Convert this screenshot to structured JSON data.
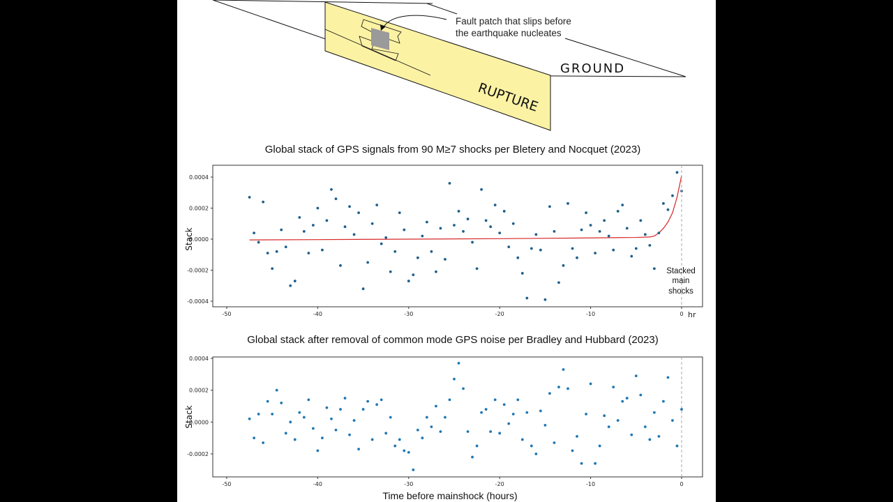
{
  "diagram": {
    "callout": [
      "Fault patch that slips before",
      "the earthquake nucleates"
    ],
    "ground_label": "GROUND",
    "rupture_label": "RUPTURE",
    "plane_color": "#fcf2a4",
    "patch_color": "#9a9a9a"
  },
  "chart_data": [
    {
      "type": "scatter",
      "title": "Global stack of GPS signals from 90 M≥7 shocks per Bletery and Nocquet (2023)",
      "xlabel": "hr",
      "ylabel": "Stack",
      "xlim": [
        -50,
        2.3
      ],
      "ylim": [
        -0.00042,
        0.00047
      ],
      "xticks": [
        "-50",
        "-40",
        "-30",
        "-20",
        "-10",
        "0"
      ],
      "xtick_values": [
        -50,
        -40,
        -30,
        -20,
        -10,
        0
      ],
      "yticks": [
        "0.0004",
        "0.0002",
        "0.0000",
        "-0.0002",
        "-0.0004"
      ],
      "ytick_values": [
        0.0004,
        0.0002,
        0,
        -0.0002,
        -0.0004
      ],
      "grid": false,
      "point_color": "#1f5f8b",
      "fit_color": "#d62728",
      "annotation": [
        "Stacked",
        "main",
        "shocks"
      ],
      "x": [
        -47.5,
        -47,
        -46.5,
        -46,
        -45.5,
        -45,
        -44.5,
        -44,
        -43.5,
        -43,
        -42.5,
        -42,
        -41.5,
        -41,
        -40.5,
        -40,
        -39.5,
        -39,
        -38.5,
        -38,
        -37.5,
        -37,
        -36.5,
        -36,
        -35.5,
        -35,
        -34.5,
        -34,
        -33.5,
        -33,
        -32.5,
        -32,
        -31.5,
        -31,
        -30.5,
        -30,
        -29.5,
        -29,
        -28.5,
        -28,
        -27.5,
        -27,
        -26.5,
        -26,
        -25.5,
        -25,
        -24.5,
        -24,
        -23.5,
        -23,
        -22.5,
        -22,
        -21.5,
        -21,
        -20.5,
        -20,
        -19.5,
        -19,
        -18.5,
        -18,
        -17.5,
        -17,
        -16.5,
        -16,
        -15.5,
        -15,
        -14.5,
        -14,
        -13.5,
        -13,
        -12.5,
        -12,
        -11.5,
        -11,
        -10.5,
        -10,
        -9.5,
        -9,
        -8.5,
        -8,
        -7.5,
        -7,
        -6.5,
        -6,
        -5.5,
        -5,
        -4.5,
        -4,
        -3.5,
        -3,
        -2.5,
        -2,
        -1.5,
        -1,
        -0.5,
        0
      ],
      "y": [
        0.00027,
        4e-05,
        -2e-05,
        0.00024,
        -9e-05,
        -0.00019,
        -8e-05,
        6e-05,
        -5e-05,
        -0.0003,
        -0.00027,
        0.00014,
        5e-05,
        -9e-05,
        9e-05,
        0.0002,
        -7e-05,
        0.00012,
        0.00032,
        0.00026,
        -0.00017,
        8e-05,
        0.00021,
        3e-05,
        0.00017,
        -0.00032,
        -0.00015,
        0.0001,
        0.00022,
        -3e-05,
        1e-05,
        -0.00021,
        -8e-05,
        0.00017,
        6e-05,
        -0.00027,
        -0.00023,
        -0.00012,
        2e-05,
        0.00011,
        -8e-05,
        -0.00021,
        7e-05,
        -0.00013,
        0.00036,
        9e-05,
        0.00018,
        5e-05,
        0.00013,
        -2e-05,
        -0.00019,
        0.00032,
        0.00012,
        8e-05,
        0.00022,
        4e-05,
        0.00018,
        -5e-05,
        0.0001,
        -0.00012,
        -0.00022,
        -0.00038,
        -6e-05,
        3e-05,
        -7e-05,
        -0.00039,
        0.00021,
        5e-05,
        -0.00028,
        -0.00017,
        0.00023,
        -6e-05,
        -0.00012,
        6e-05,
        0.00017,
        9e-05,
        -9e-05,
        5e-05,
        0.00012,
        2e-05,
        -7e-05,
        0.00018,
        0.00022,
        7e-05,
        -0.00011,
        -6e-05,
        0.00012,
        3e-05,
        -4e-05,
        -0.00019,
        4e-05,
        0.00023,
        0.00019,
        0.00028,
        0.00043,
        0.00031
      ],
      "fit": {
        "x": [
          -47.5,
          -40,
          -30,
          -20,
          -10,
          -5,
          -3.5,
          -3,
          -2.5,
          -2,
          -1.5,
          -1,
          -0.5,
          0
        ],
        "y": [
          -5e-06,
          -3e-06,
          0,
          3e-06,
          8e-06,
          1.1e-05,
          1.4e-05,
          2e-05,
          4e-05,
          7e-05,
          0.00011,
          0.00017,
          0.00027,
          0.00041
        ]
      }
    },
    {
      "type": "scatter",
      "title": "Global stack after removal of common mode GPS noise per Bradley and Hubbard (2023)",
      "xlabel": "Time before mainshock (hours)",
      "ylabel": "Stack",
      "xlim": [
        -50,
        2.3
      ],
      "ylim": [
        -0.00032,
        0.0004
      ],
      "xticks": [
        "-50",
        "-40",
        "-30",
        "-20",
        "-10",
        "0"
      ],
      "xtick_values": [
        -50,
        -40,
        -30,
        -20,
        -10,
        0
      ],
      "yticks": [
        "0.0004",
        "0.0002",
        "0.0000",
        "-0.0002"
      ],
      "ytick_values": [
        0.0004,
        0.0002,
        0,
        -0.0002
      ],
      "grid": false,
      "point_color": "#1f77b4",
      "x": [
        -47.5,
        -47,
        -46.5,
        -46,
        -45.5,
        -45,
        -44.5,
        -44,
        -43.5,
        -43,
        -42.5,
        -42,
        -41.5,
        -41,
        -40.5,
        -40,
        -39.5,
        -39,
        -38.5,
        -38,
        -37.5,
        -37,
        -36.5,
        -36,
        -35.5,
        -35,
        -34.5,
        -34,
        -33.5,
        -33,
        -32.5,
        -32,
        -31.5,
        -31,
        -30.5,
        -30,
        -29.5,
        -29,
        -28.5,
        -28,
        -27.5,
        -27,
        -26.5,
        -26,
        -25.5,
        -25,
        -24.5,
        -24,
        -23.5,
        -23,
        -22.5,
        -22,
        -21.5,
        -21,
        -20.5,
        -20,
        -19.5,
        -19,
        -18.5,
        -18,
        -17.5,
        -17,
        -16.5,
        -16,
        -15.5,
        -15,
        -14.5,
        -14,
        -13.5,
        -13,
        -12.5,
        -12,
        -11.5,
        -11,
        -10.5,
        -10,
        -9.5,
        -9,
        -8.5,
        -8,
        -7.5,
        -7,
        -6.5,
        -6,
        -5.5,
        -5,
        -4.5,
        -4,
        -3.5,
        -3,
        -2.5,
        -2,
        -1.5,
        -1,
        -0.5,
        0
      ],
      "y": [
        2e-05,
        -0.0001,
        5e-05,
        -0.00013,
        0.00013,
        5e-05,
        0.0002,
        0.00012,
        -7e-05,
        0.0,
        -0.00011,
        6e-05,
        3e-05,
        0.00014,
        -4e-05,
        -0.00018,
        -0.0001,
        9e-05,
        2e-05,
        -5e-05,
        8e-05,
        0.00015,
        -8e-05,
        1e-05,
        -0.00017,
        8e-05,
        0.00013,
        -0.00011,
        0.00011,
        0.00014,
        -7e-05,
        3e-05,
        -0.00015,
        -0.00011,
        -0.00018,
        -0.00019,
        -0.0003,
        -5e-05,
        -0.0001,
        3e-05,
        -3e-05,
        0.0001,
        -6e-05,
        3e-05,
        0.00014,
        0.00027,
        0.00037,
        0.00021,
        -6e-05,
        -0.00022,
        -0.00015,
        6e-05,
        8e-05,
        -6e-05,
        0.00014,
        -7e-05,
        0.00011,
        -1e-05,
        5e-05,
        0.00014,
        -0.00011,
        6e-05,
        -0.00015,
        -0.0002,
        7e-05,
        -2e-05,
        0.00018,
        -0.00013,
        0.00022,
        0.00033,
        0.00021,
        -0.00018,
        -9e-05,
        -0.00026,
        5e-05,
        0.00024,
        -0.00026,
        -0.00015,
        4e-05,
        -3e-05,
        0.00022,
        1e-05,
        0.00013,
        0.00015,
        -8e-05,
        0.00029,
        0.00017,
        -3e-05,
        -0.00011,
        6e-05,
        -9e-05,
        0.00013,
        0.00028,
        1e-05,
        -0.00015,
        8e-05
      ]
    }
  ]
}
